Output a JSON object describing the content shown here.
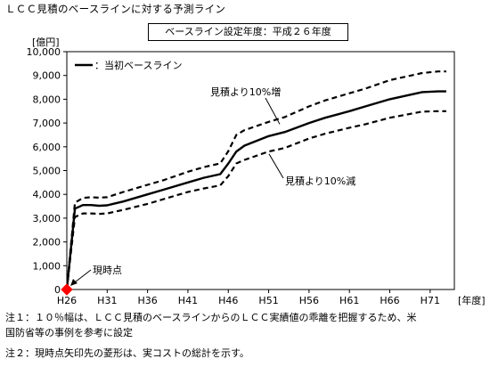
{
  "page_title": "ＬＣＣ見積のベースラインに対する予測ライン",
  "baseline_year": "ベースライン設定年度：平成２６年度",
  "notes": [
    "注１：１０％幅は、ＬＣＣ見積のベースラインからのＬＣＣ実績値の乖離を把握するため、米",
    "国防省等の事例を参考に設定",
    "注２：現時点矢印先の菱形は、実コストの総計を示す。"
  ],
  "chart_data": {
    "type": "line",
    "ylabel": "[億円]",
    "xlabel": "[年度]",
    "ylim": [
      0,
      10000
    ],
    "y_ticks": [
      "0",
      "1,000",
      "2,000",
      "3,000",
      "4,000",
      "5,000",
      "6,000",
      "7,000",
      "8,000",
      "9,000",
      "10,000"
    ],
    "x_ticks": [
      "H26",
      "H31",
      "H36",
      "H41",
      "H46",
      "H51",
      "H56",
      "H61",
      "H66",
      "H71"
    ],
    "x": [
      26,
      27,
      28,
      29,
      30,
      31,
      33,
      36,
      38,
      41,
      43,
      45,
      46,
      47,
      48,
      51,
      53,
      56,
      58,
      61,
      63,
      66,
      68,
      70,
      72,
      73
    ],
    "series": [
      {
        "name": "当初ベースライン",
        "values": [
          0,
          3400,
          3550,
          3550,
          3520,
          3540,
          3700,
          4000,
          4200,
          4500,
          4700,
          4850,
          5300,
          5800,
          6050,
          6450,
          6620,
          7000,
          7220,
          7500,
          7700,
          8000,
          8150,
          8300,
          8330,
          8330
        ]
      },
      {
        "name": "見積より10%増",
        "values": [
          0,
          3650,
          3850,
          3880,
          3860,
          3880,
          4100,
          4400,
          4600,
          4950,
          5150,
          5300,
          5820,
          6500,
          6700,
          7050,
          7250,
          7700,
          7950,
          8250,
          8450,
          8800,
          8950,
          9100,
          9170,
          9170
        ]
      },
      {
        "name": "見積より10%減",
        "values": [
          0,
          3050,
          3200,
          3200,
          3180,
          3200,
          3350,
          3600,
          3800,
          4100,
          4250,
          4380,
          4770,
          5300,
          5450,
          5800,
          5950,
          6350,
          6550,
          6800,
          6950,
          7220,
          7350,
          7480,
          7500,
          7500
        ]
      }
    ],
    "legend": {
      "label": "：当初ベースライン",
      "placement": "top-left"
    },
    "annotations": [
      {
        "text": "見積より10%増",
        "series": 1
      },
      {
        "text": "見積より10%減",
        "series": 2
      },
      {
        "text": "現時点",
        "x": 26,
        "y": 0,
        "marker": "diamond"
      }
    ],
    "colors": {
      "line": "#000000",
      "marker": "#ff0000",
      "frame": "#000000"
    },
    "grid": false
  }
}
